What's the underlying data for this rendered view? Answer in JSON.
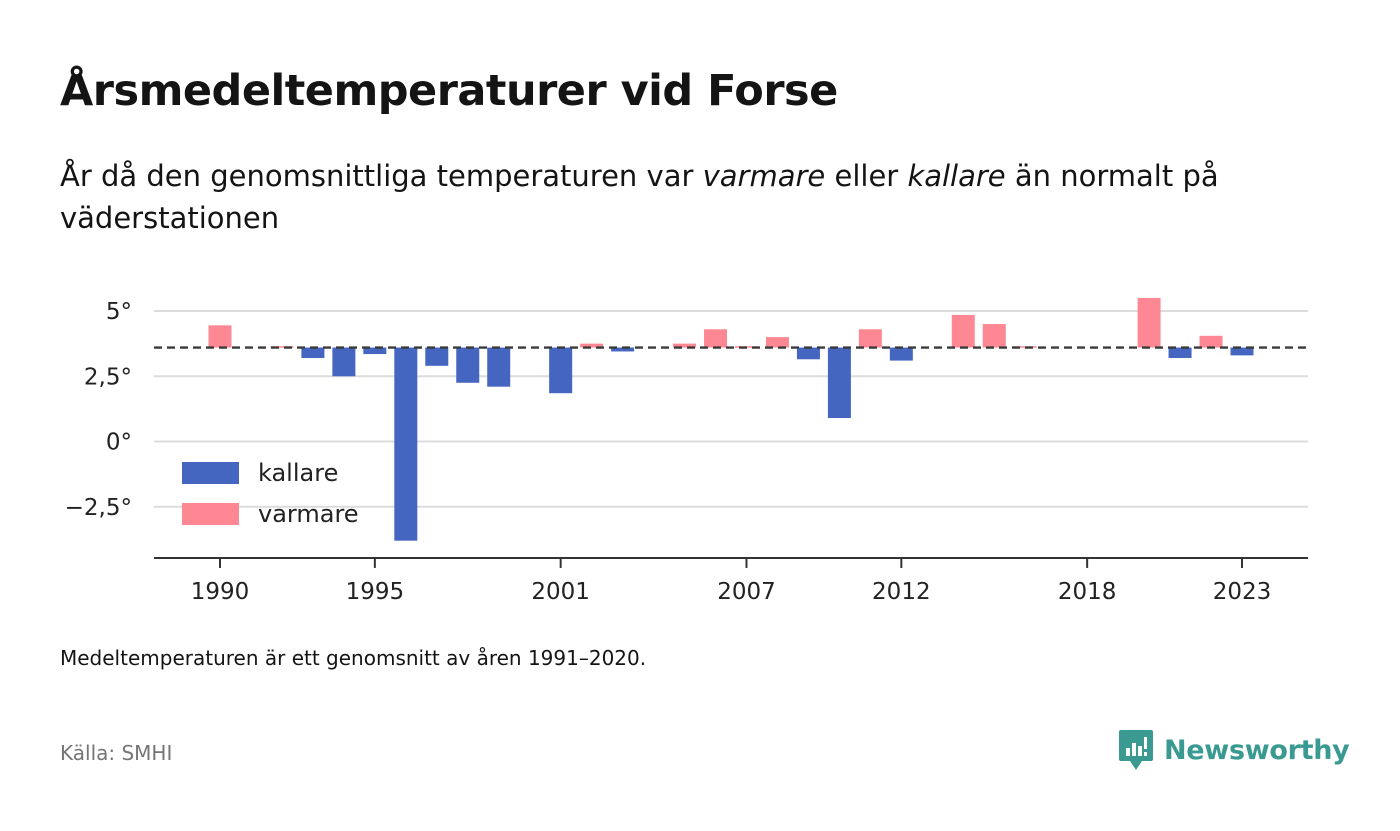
{
  "title": "Årsmedeltemperaturer vid Forse",
  "subtitle": {
    "part1": "År då den genomsnittliga temperaturen var ",
    "warm_word": "varmare",
    "part2": " eller ",
    "cold_word": "kallare",
    "part3": " än normalt på väderstationen"
  },
  "note": "Medeltemperaturen är ett genomsnitt av åren 1991–2020.",
  "source": "Källa: SMHI",
  "brand": {
    "name": "Newsworthy",
    "color": "#3a9a92"
  },
  "colors": {
    "colder": "#4465c0",
    "warmer": "#fd8894",
    "mean_line": "#3a3a3a",
    "grid": "#dcdcdc",
    "axis": "#333333"
  },
  "chart_data": {
    "type": "bar",
    "baseline": 3.6,
    "ylim": [
      -4.5,
      5.5
    ],
    "yticks": [
      5,
      2.5,
      0,
      -2.5
    ],
    "ytick_labels": [
      "5°",
      "2,5°",
      "0°",
      "−2,5°"
    ],
    "xticks": [
      1990,
      1995,
      2001,
      2007,
      2012,
      2018,
      2023
    ],
    "xtick_labels": [
      "1990",
      "1995",
      "2001",
      "2007",
      "2012",
      "2018",
      "2023"
    ],
    "legend": {
      "placement": "bottom-left",
      "items": [
        {
          "label": "kallare",
          "color": "#4465c0"
        },
        {
          "label": "varmare",
          "color": "#fd8894"
        }
      ]
    },
    "years": [
      1990,
      1991,
      1992,
      1993,
      1994,
      1995,
      1996,
      1997,
      1998,
      1999,
      2000,
      2001,
      2002,
      2003,
      2004,
      2005,
      2006,
      2007,
      2008,
      2009,
      2010,
      2011,
      2012,
      2013,
      2014,
      2015,
      2016,
      2017,
      2018,
      2019,
      2020,
      2021,
      2022,
      2023
    ],
    "values": [
      4.45,
      null,
      3.65,
      3.2,
      2.5,
      3.35,
      -3.8,
      2.9,
      2.25,
      2.1,
      null,
      1.85,
      3.75,
      3.45,
      null,
      3.75,
      4.3,
      3.65,
      4.0,
      3.15,
      0.9,
      4.3,
      3.1,
      null,
      4.85,
      4.5,
      3.65,
      null,
      null,
      null,
      5.5,
      3.2,
      4.05,
      3.3
    ]
  }
}
